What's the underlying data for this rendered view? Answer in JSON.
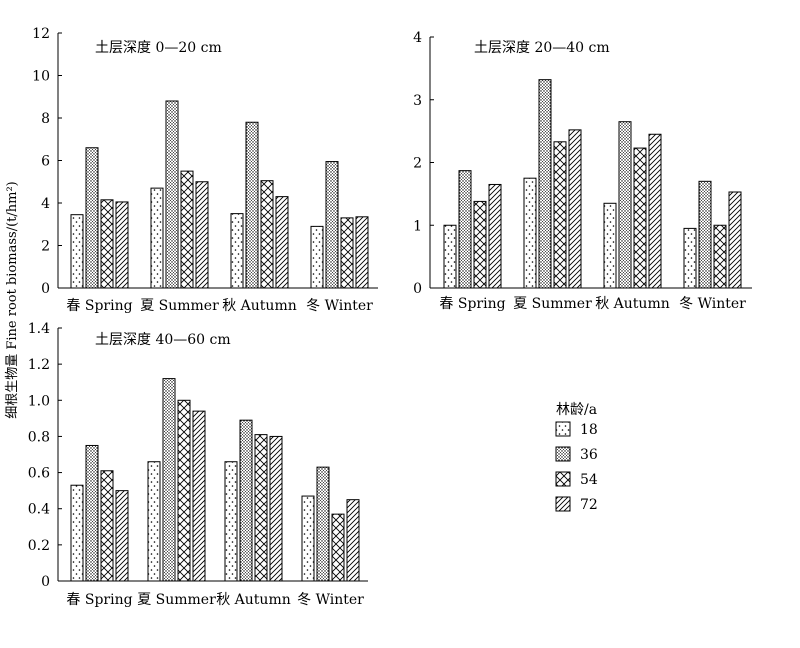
{
  "y_axis_label": "细根生物量 Fine root biomass/(t/hm²)",
  "legend": {
    "title": "林龄/a",
    "items": [
      {
        "label": "18",
        "pattern": "dots"
      },
      {
        "label": "36",
        "pattern": "dense-dots"
      },
      {
        "label": "54",
        "pattern": "cross"
      },
      {
        "label": "72",
        "pattern": "diagonal"
      }
    ]
  },
  "chart_data": [
    {
      "type": "bar",
      "title": "土层深度 0—20 cm",
      "categories": [
        "春 Spring",
        "夏 Summer",
        "秋 Autumn",
        "冬 Winter"
      ],
      "series": [
        {
          "name": "18",
          "values": [
            3.45,
            4.7,
            3.5,
            2.9
          ]
        },
        {
          "name": "36",
          "values": [
            6.6,
            8.8,
            7.8,
            5.95
          ]
        },
        {
          "name": "54",
          "values": [
            4.15,
            5.5,
            5.05,
            3.3
          ]
        },
        {
          "name": "72",
          "values": [
            4.05,
            5.0,
            4.3,
            3.35
          ]
        }
      ],
      "ylim": [
        0,
        12
      ],
      "yticks": [
        "0",
        "2",
        "4",
        "6",
        "8",
        "10",
        "12"
      ]
    },
    {
      "type": "bar",
      "title": "土层深度 20—40 cm",
      "categories": [
        "春 Spring",
        "夏 Summer",
        "秋 Autumn",
        "冬 Winter"
      ],
      "series": [
        {
          "name": "18",
          "values": [
            1.0,
            1.75,
            1.35,
            0.95
          ]
        },
        {
          "name": "36",
          "values": [
            1.87,
            3.32,
            2.65,
            1.7
          ]
        },
        {
          "name": "54",
          "values": [
            1.38,
            2.33,
            2.23,
            1.0
          ]
        },
        {
          "name": "72",
          "values": [
            1.65,
            2.52,
            2.45,
            1.53
          ]
        }
      ],
      "ylim": [
        0,
        4
      ],
      "yticks": [
        "0",
        "1",
        "2",
        "3",
        "4"
      ]
    },
    {
      "type": "bar",
      "title": "土层深度 40—60 cm",
      "categories": [
        "春 Spring",
        "夏 Summer",
        "秋 Autumn",
        "冬 Winter"
      ],
      "series": [
        {
          "name": "18",
          "values": [
            0.53,
            0.66,
            0.66,
            0.47
          ]
        },
        {
          "name": "36",
          "values": [
            0.75,
            1.12,
            0.89,
            0.63
          ]
        },
        {
          "name": "54",
          "values": [
            0.61,
            1.0,
            0.81,
            0.37
          ]
        },
        {
          "name": "72",
          "values": [
            0.5,
            0.94,
            0.8,
            0.45
          ]
        }
      ],
      "ylim": [
        0,
        1.4
      ],
      "yticks": [
        "0",
        "0.2",
        "0.4",
        "0.6",
        "0.8",
        "1.0",
        "1.2",
        "1.4"
      ]
    }
  ]
}
